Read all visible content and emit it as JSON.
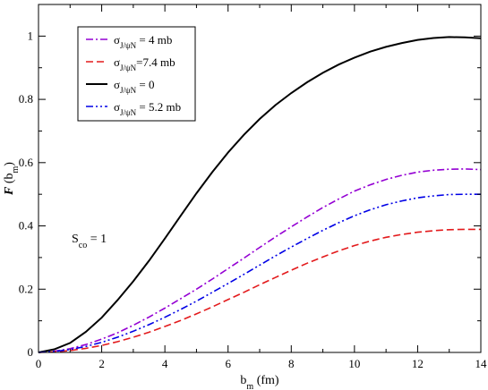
{
  "chart_data": {
    "type": "line",
    "xlabel": {
      "main": "b",
      "sub": "m",
      "unit": " (fm)"
    },
    "ylabel": {
      "main": "F",
      "paren_open": " (b",
      "sub": "m",
      "paren_close": ")"
    },
    "xlim": [
      0,
      14
    ],
    "ylim": [
      0,
      1.1
    ],
    "xticks": [
      0,
      2,
      4,
      6,
      8,
      10,
      12,
      14
    ],
    "yticks": [
      0,
      0.2,
      0.4,
      0.6,
      0.8,
      1
    ],
    "xtick_labels": [
      "0",
      "2",
      "4",
      "6",
      "8",
      "10",
      "12",
      "14"
    ],
    "ytick_labels": [
      "0",
      "0.2",
      "0.4",
      "0.6",
      "0.8",
      "1"
    ],
    "grid": false,
    "legend_position": "top-left",
    "annotation": {
      "main": "S",
      "sub": "co",
      "rest": " = 1"
    },
    "series": [
      {
        "name": "σJ/ψN = 4 mb",
        "legend": {
          "sym": "σ",
          "sub": "J/ψN",
          "rest": " = 4 mb"
        },
        "color": "#9400d3",
        "dash": "dashdot",
        "x": [
          0,
          0.5,
          1,
          1.5,
          2,
          2.5,
          3,
          3.5,
          4,
          4.5,
          5,
          5.5,
          6,
          6.5,
          7,
          7.5,
          8,
          8.5,
          9,
          9.5,
          10,
          10.5,
          11,
          11.5,
          12,
          12.5,
          13,
          13.5,
          14
        ],
        "y": [
          0,
          0.004,
          0.012,
          0.025,
          0.042,
          0.062,
          0.086,
          0.112,
          0.14,
          0.17,
          0.2,
          0.232,
          0.265,
          0.298,
          0.332,
          0.365,
          0.397,
          0.428,
          0.458,
          0.485,
          0.51,
          0.53,
          0.547,
          0.56,
          0.57,
          0.576,
          0.579,
          0.58,
          0.578
        ]
      },
      {
        "name": "σJ/ψN=7.4 mb",
        "legend": {
          "sym": "σ",
          "sub": "J/ψN",
          "rest": "=7.4 mb"
        },
        "color": "#e31a1c",
        "dash": "dash",
        "x": [
          0,
          0.5,
          1,
          1.5,
          2,
          2.5,
          3,
          3.5,
          4,
          4.5,
          5,
          5.5,
          6,
          6.5,
          7,
          7.5,
          8,
          8.5,
          9,
          9.5,
          10,
          10.5,
          11,
          11.5,
          12,
          12.5,
          13,
          13.5,
          14
        ],
        "y": [
          0,
          0.002,
          0.006,
          0.013,
          0.022,
          0.034,
          0.048,
          0.064,
          0.082,
          0.101,
          0.122,
          0.144,
          0.167,
          0.19,
          0.214,
          0.237,
          0.26,
          0.282,
          0.302,
          0.321,
          0.338,
          0.352,
          0.364,
          0.373,
          0.38,
          0.385,
          0.388,
          0.389,
          0.389
        ]
      },
      {
        "name": "σJ/ψN = 0",
        "legend": {
          "sym": "σ",
          "sub": "J/ψN",
          "rest": " = 0"
        },
        "color": "#000000",
        "dash": "solid",
        "x": [
          0,
          0.5,
          1,
          1.5,
          2,
          2.5,
          3,
          3.5,
          4,
          4.5,
          5,
          5.5,
          6,
          6.5,
          7,
          7.5,
          8,
          8.5,
          9,
          9.5,
          10,
          10.5,
          11,
          11.5,
          12,
          12.5,
          13,
          13.5,
          14
        ],
        "y": [
          0,
          0.01,
          0.03,
          0.065,
          0.11,
          0.165,
          0.225,
          0.29,
          0.36,
          0.432,
          0.503,
          0.57,
          0.632,
          0.688,
          0.738,
          0.782,
          0.82,
          0.854,
          0.884,
          0.91,
          0.932,
          0.951,
          0.966,
          0.978,
          0.988,
          0.994,
          0.997,
          0.996,
          0.993
        ]
      },
      {
        "name": "σJ/ψN = 5.2 mb",
        "legend": {
          "sym": "σ",
          "sub": "J/ψN",
          "rest": " = 5.2 mb"
        },
        "color": "#0000e6",
        "dash": "dashdotdot",
        "x": [
          0,
          0.5,
          1,
          1.5,
          2,
          2.5,
          3,
          3.5,
          4,
          4.5,
          5,
          5.5,
          6,
          6.5,
          7,
          7.5,
          8,
          8.5,
          9,
          9.5,
          10,
          10.5,
          11,
          11.5,
          12,
          12.5,
          13,
          13.5,
          14
        ],
        "y": [
          0,
          0.003,
          0.009,
          0.019,
          0.032,
          0.048,
          0.067,
          0.088,
          0.111,
          0.136,
          0.162,
          0.19,
          0.218,
          0.247,
          0.276,
          0.305,
          0.333,
          0.36,
          0.386,
          0.41,
          0.432,
          0.451,
          0.467,
          0.479,
          0.489,
          0.495,
          0.499,
          0.5,
          0.5
        ]
      }
    ]
  }
}
